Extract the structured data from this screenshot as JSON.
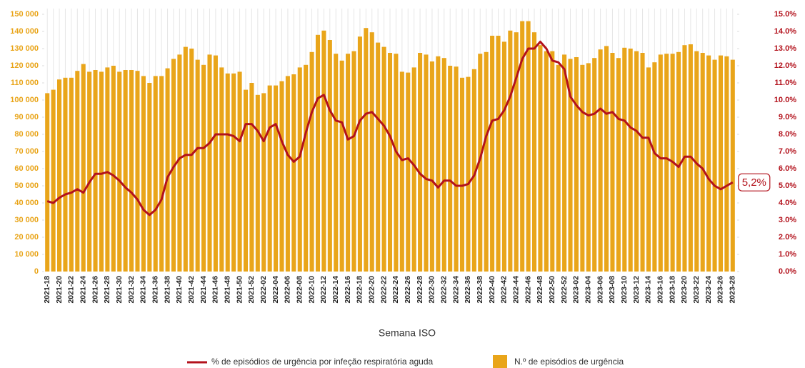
{
  "chart_data": {
    "type": "combo",
    "x_label": "Semana ISO",
    "categories": [
      "2021-18",
      null,
      "2021-20",
      null,
      "2021-22",
      null,
      "2021-24",
      null,
      "2021-26",
      null,
      "2021-28",
      null,
      "2021-30",
      null,
      "2021-32",
      null,
      "2021-34",
      null,
      "2021-36",
      null,
      "2021-38",
      null,
      "2021-40",
      null,
      "2021-42",
      null,
      "2021-44",
      null,
      "2021-46",
      null,
      "2021-48",
      null,
      "2021-50",
      null,
      "2021-52",
      null,
      "2022-02",
      null,
      "2022-04",
      null,
      "2022-06",
      null,
      "2022-08",
      null,
      "2022-10",
      null,
      "2022-12",
      null,
      "2022-14",
      null,
      "2022-16",
      null,
      "2022-18",
      null,
      "2022-20",
      null,
      "2022-22",
      null,
      "2022-24",
      null,
      "2022-26",
      null,
      "2022-28",
      null,
      "2022-30",
      null,
      "2022-32",
      null,
      "2022-34",
      null,
      "2022-36",
      null,
      "2022-38",
      null,
      "2022-40",
      null,
      "2022-42",
      null,
      "2022-44",
      null,
      "2022-46",
      null,
      "2022-48",
      null,
      "2022-50",
      null,
      "2022-52",
      null,
      "2023-02",
      null,
      "2023-04",
      null,
      "2023-06",
      null,
      "2023-08",
      null,
      "2023-10",
      null,
      "2023-12",
      null,
      "2023-14",
      null,
      "2023-16",
      null,
      "2023-18",
      null,
      "2023-20",
      null,
      "2023-22",
      null,
      "2023-24",
      null,
      "2023-26",
      null,
      "2023-28"
    ],
    "series": [
      {
        "name": "N.º de episódios de urgência",
        "type": "bar",
        "color": "#e9a51a",
        "axis": "y",
        "values": [
          104000,
          106000,
          112000,
          113000,
          113000,
          117000,
          121000,
          116500,
          117500,
          116500,
          119000,
          120000,
          116500,
          117500,
          117500,
          117000,
          114000,
          110000,
          114000,
          114000,
          118500,
          124000,
          126500,
          131000,
          130000,
          123500,
          120500,
          126500,
          126000,
          119000,
          115500,
          115500,
          116500,
          106000,
          110000,
          103000,
          104000,
          108500,
          108500,
          111000,
          114000,
          115000,
          119000,
          120500,
          128000,
          138000,
          140500,
          135000,
          127000,
          123000,
          127000,
          128500,
          137000,
          142000,
          139500,
          133500,
          131000,
          127500,
          127000,
          116500,
          116000,
          119000,
          127500,
          126500,
          122500,
          125500,
          124500,
          120000,
          119500,
          113000,
          113500,
          118000,
          127000,
          128000,
          137500,
          137500,
          134000,
          140500,
          139500,
          146000,
          146000,
          139500,
          132000,
          128500,
          128500,
          120500,
          126500,
          124000,
          125000,
          120500,
          121500,
          124500,
          129500,
          131500,
          127500,
          124500,
          130500,
          130000,
          128500,
          127500,
          119000,
          122000,
          126500,
          127000,
          127000,
          128000,
          132000,
          132500,
          128500,
          127500,
          126000,
          123500,
          126000,
          125500,
          123500
        ]
      },
      {
        "name": "% de episódios de urgência por infeção respiratória aguda",
        "type": "line",
        "color": "#b3121c",
        "axis": "y2",
        "values": [
          4.1,
          4.0,
          4.3,
          4.5,
          4.6,
          4.8,
          4.6,
          5.2,
          5.7,
          5.7,
          5.8,
          5.6,
          5.3,
          4.9,
          4.6,
          4.2,
          3.6,
          3.3,
          3.6,
          4.2,
          5.5,
          6.1,
          6.6,
          6.8,
          6.8,
          7.2,
          7.2,
          7.5,
          8.0,
          8.0,
          8.0,
          7.9,
          7.6,
          8.6,
          8.6,
          8.2,
          7.6,
          8.4,
          8.6,
          7.6,
          6.8,
          6.4,
          6.7,
          8.1,
          9.3,
          10.1,
          10.3,
          9.4,
          8.8,
          8.7,
          7.7,
          7.9,
          8.8,
          9.2,
          9.3,
          8.9,
          8.5,
          7.9,
          7.0,
          6.5,
          6.6,
          6.2,
          5.7,
          5.4,
          5.3,
          4.9,
          5.3,
          5.3,
          5.0,
          5.0,
          5.1,
          5.6,
          6.6,
          7.9,
          8.8,
          8.9,
          9.4,
          10.2,
          11.3,
          12.4,
          13.0,
          13.0,
          13.4,
          13.0,
          12.3,
          12.2,
          11.8,
          10.2,
          9.7,
          9.3,
          9.1,
          9.2,
          9.5,
          9.2,
          9.3,
          8.9,
          8.8,
          8.4,
          8.2,
          7.8,
          7.8,
          6.9,
          6.6,
          6.6,
          6.4,
          6.1,
          6.7,
          6.7,
          6.3,
          6.0,
          5.4,
          5.0,
          4.8,
          5.0,
          5.2
        ],
        "value_labels": [
          null,
          null,
          null,
          null,
          null,
          null,
          null,
          null,
          null,
          null,
          null,
          null,
          null,
          null,
          null,
          null,
          null,
          null,
          null,
          null,
          null,
          null,
          null,
          null,
          null,
          null,
          null,
          null,
          null,
          null,
          null,
          null,
          null,
          null,
          null,
          null,
          null,
          null,
          null,
          null,
          null,
          null,
          null,
          null,
          null,
          null,
          null,
          null,
          null,
          null,
          null,
          null,
          null,
          null,
          null,
          null,
          null,
          null,
          null,
          null,
          null,
          null,
          null,
          null,
          null,
          null,
          null,
          null,
          null,
          null,
          null,
          null,
          null,
          null,
          null,
          null,
          null,
          null,
          null,
          null,
          null,
          null,
          null,
          null,
          null,
          null,
          null,
          null,
          null,
          null,
          null,
          null,
          null,
          null,
          null,
          null,
          null,
          null,
          null,
          null,
          null,
          null,
          null,
          null,
          null,
          null,
          null,
          null,
          null,
          null,
          null,
          null,
          null,
          null,
          "5,2%"
        ]
      }
    ],
    "ylim": [
      0,
      150000
    ],
    "yticks": [
      0,
      {
        "value": 10000,
        "label": "10 000"
      },
      {
        "value": 20000,
        "label": "20 000"
      },
      {
        "value": 30000,
        "label": "30 000"
      },
      {
        "value": 40000,
        "label": "40 000"
      },
      {
        "value": 50000,
        "label": "50 000"
      },
      {
        "value": 60000,
        "label": "60 000"
      },
      {
        "value": 70000,
        "label": "70 000"
      },
      {
        "value": 80000,
        "label": "80 000"
      },
      {
        "value": 90000,
        "label": "90 000"
      },
      {
        "value": 100000,
        "label": "100 000"
      },
      {
        "value": 110000,
        "label": "110 000"
      },
      {
        "value": 120000,
        "label": "120 000"
      },
      {
        "value": 130000,
        "label": "130 000"
      },
      {
        "value": 140000,
        "label": "140 000"
      },
      {
        "value": 150000,
        "label": "150 000"
      }
    ],
    "y2lim": [
      0,
      15
    ],
    "y2ticks": [
      {
        "value": 0,
        "label": "0.0%"
      },
      {
        "value": 1,
        "label": "1.0%"
      },
      {
        "value": 2,
        "label": "2.0%"
      },
      {
        "value": 3,
        "label": "3.0%"
      },
      {
        "value": 4,
        "label": "4.0%"
      },
      {
        "value": 5,
        "label": "5.0%"
      },
      {
        "value": 6,
        "label": "6.0%"
      },
      {
        "value": 7,
        "label": "7.0%"
      },
      {
        "value": 8,
        "label": "8.0%"
      },
      {
        "value": 9,
        "label": "9.0%"
      },
      {
        "value": 10,
        "label": "10.0%"
      },
      {
        "value": 11,
        "label": "11.0%"
      },
      {
        "value": 12,
        "label": "12.0%"
      },
      {
        "value": 13,
        "label": "13.0%"
      },
      {
        "value": 14,
        "label": "14.0%"
      },
      {
        "value": 15,
        "label": "15.0%"
      }
    ],
    "legend": "bottom"
  }
}
